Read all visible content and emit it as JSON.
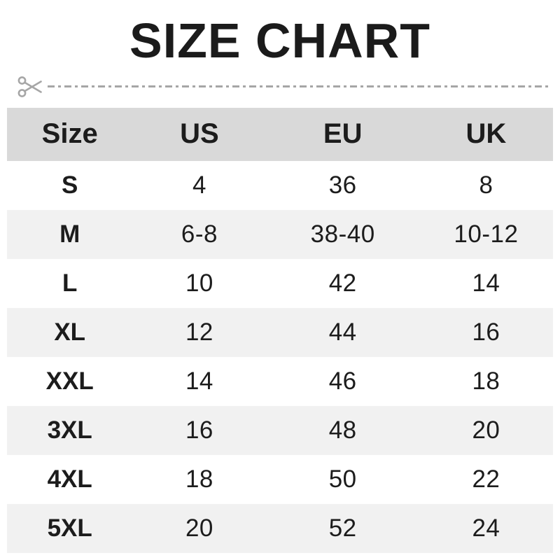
{
  "title": "SIZE CHART",
  "colors": {
    "header_bg": "#d9d9d9",
    "row_alt_bg": "#f1f1f1",
    "row_bg": "#ffffff",
    "text": "#1c1c1c",
    "cut_line": "#a6a6a6"
  },
  "icons": {
    "cut_line_icon": "scissors-icon"
  },
  "chart_data": {
    "type": "table",
    "title": "SIZE CHART",
    "columns": [
      "Size",
      "US",
      "EU",
      "UK"
    ],
    "rows": [
      [
        "S",
        "4",
        "36",
        "8"
      ],
      [
        "M",
        "6-8",
        "38-40",
        "10-12"
      ],
      [
        "L",
        "10",
        "42",
        "14"
      ],
      [
        "XL",
        "12",
        "44",
        "16"
      ],
      [
        "XXL",
        "14",
        "46",
        "18"
      ],
      [
        "3XL",
        "16",
        "48",
        "20"
      ],
      [
        "4XL",
        "18",
        "50",
        "22"
      ],
      [
        "5XL",
        "20",
        "52",
        "24"
      ]
    ],
    "layout": {
      "header_background": "#d9d9d9",
      "alternating_row_background": "#f1f1f1",
      "grid": "none"
    }
  }
}
